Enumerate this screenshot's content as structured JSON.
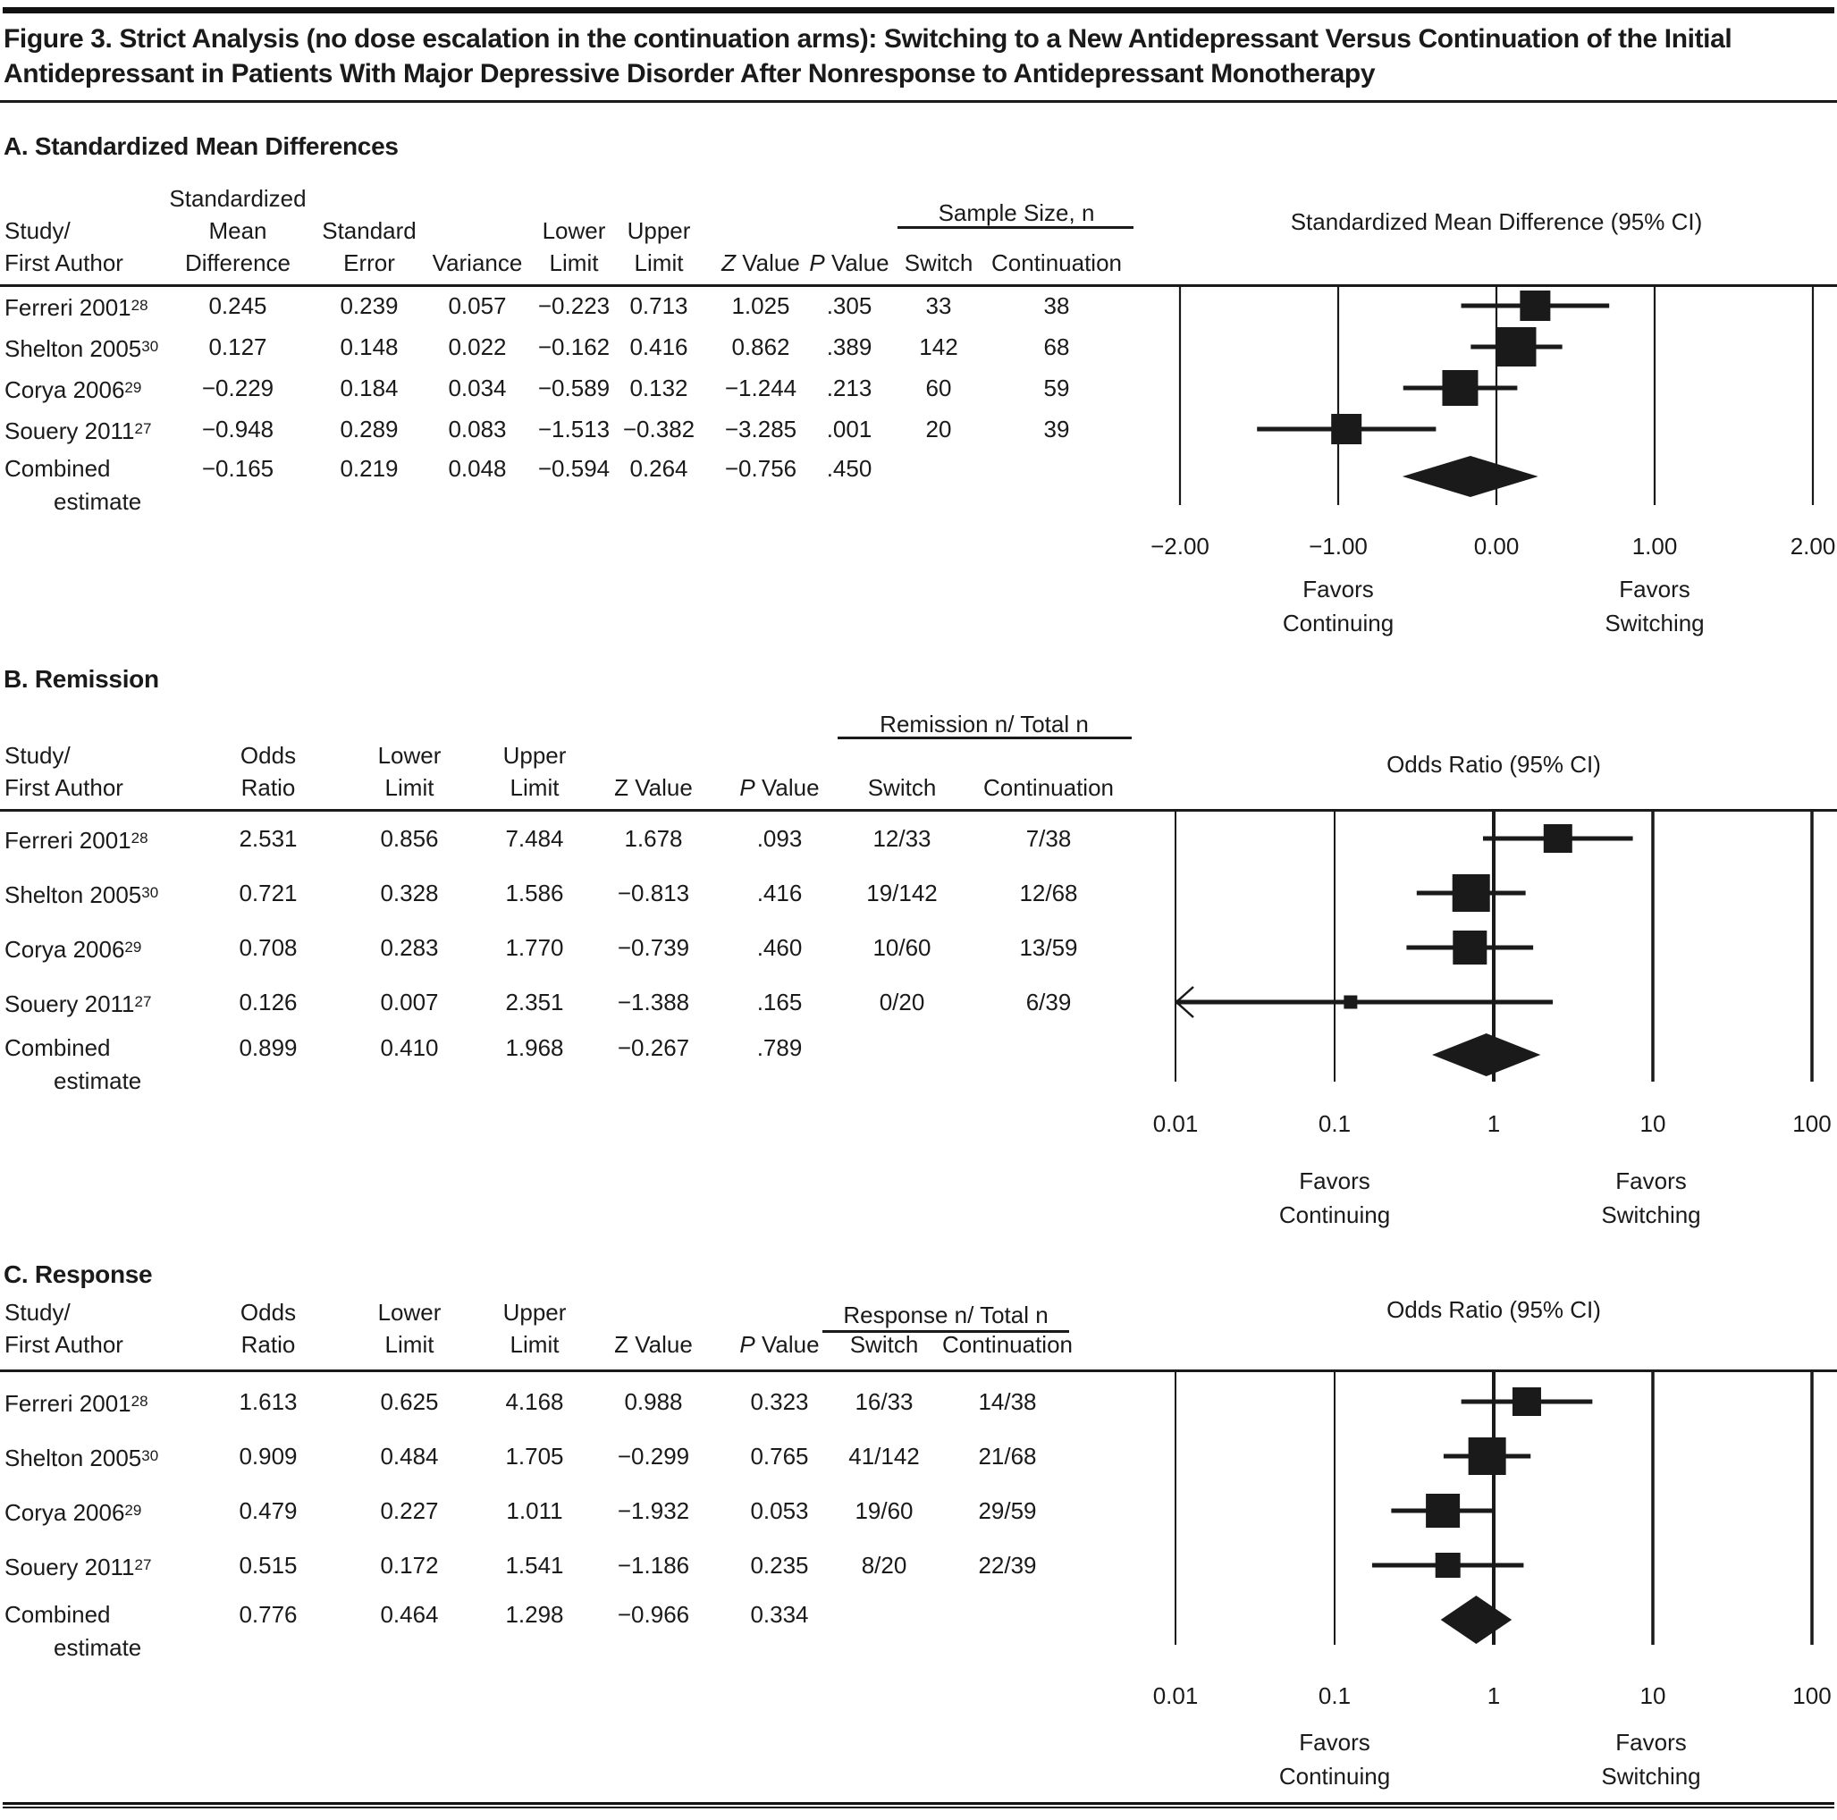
{
  "figure_title": "Figure 3. Strict Analysis (no dose escalation in the continuation arms): Switching to a New Antidepressant Versus Continuation of the Initial Antidepressant in Patients With Major Depressive Disorder After Nonresponse to Antidepressant Monotherapy",
  "chart_data": [
    {
      "type": "forest",
      "panel": "A",
      "title": "A. Standardized Mean Differences",
      "plot_title": "Standardized Mean Difference (95% CI)",
      "x_scale": "linear",
      "x_min": -2,
      "x_max": 2,
      "x_ticks": [
        -2,
        -1,
        0,
        1,
        2
      ],
      "x_tick_labels": [
        "−2.00",
        "−1.00",
        "0.00",
        "1.00",
        "2.00"
      ],
      "ref_line": 0,
      "col_headers": [
        [
          "Study/",
          "First Author"
        ],
        [
          "Standardized",
          "Mean",
          "Difference"
        ],
        [
          "Standard",
          "Error"
        ],
        [
          "Variance"
        ],
        [
          "Lower",
          "Limit"
        ],
        [
          "Upper",
          "Limit"
        ],
        [
          "Z Value"
        ],
        [
          "P Value"
        ]
      ],
      "group_header": {
        "label": "Sample Size, n",
        "sub": [
          "Switch",
          "Continuation"
        ]
      },
      "studies": [
        {
          "name": "Ferreri 2001",
          "sup": "28",
          "cells": [
            "0.245",
            "0.239",
            "0.057",
            "−0.223",
            "0.713",
            "1.025",
            ".305"
          ],
          "switch": "33",
          "continuation": "38",
          "est": 0.245,
          "lo": -0.223,
          "hi": 0.713
        },
        {
          "name": "Shelton 2005",
          "sup": "30",
          "cells": [
            "0.127",
            "0.148",
            "0.022",
            "−0.162",
            "0.416",
            "0.862",
            ".389"
          ],
          "switch": "142",
          "continuation": "68",
          "est": 0.127,
          "lo": -0.162,
          "hi": 0.416
        },
        {
          "name": "Corya 2006",
          "sup": "29",
          "cells": [
            "−0.229",
            "0.184",
            "0.034",
            "−0.589",
            "0.132",
            "−1.244",
            ".213"
          ],
          "switch": "60",
          "continuation": "59",
          "est": -0.229,
          "lo": -0.589,
          "hi": 0.132
        },
        {
          "name": "Souery 2011",
          "sup": "27",
          "cells": [
            "−0.948",
            "0.289",
            "0.083",
            "−1.513",
            "−0.382",
            "−3.285",
            ".001"
          ],
          "switch": "20",
          "continuation": "39",
          "est": -0.948,
          "lo": -1.513,
          "hi": -0.382
        }
      ],
      "combined": {
        "name": "Combined",
        "name2": "estimate",
        "cells": [
          "−0.165",
          "0.219",
          "0.048",
          "−0.594",
          "0.264",
          "−0.756",
          ".450"
        ],
        "switch": "",
        "continuation": "",
        "est": -0.165,
        "lo": -0.594,
        "hi": 0.264
      },
      "favors_left": [
        "Favors",
        "Continuing"
      ],
      "favors_right": [
        "Favors",
        "Switching"
      ]
    },
    {
      "type": "forest",
      "panel": "B",
      "title": "B. Remission",
      "plot_title": "Odds Ratio (95% CI)",
      "x_scale": "log",
      "x_min": 0.01,
      "x_max": 100,
      "x_ticks": [
        0.01,
        0.1,
        1,
        10,
        100
      ],
      "x_tick_labels": [
        "0.01",
        "0.1",
        "1",
        "10",
        "100"
      ],
      "ref_line": 1,
      "col_headers": [
        [
          "Study/",
          "First Author"
        ],
        [
          "Odds",
          "Ratio"
        ],
        [
          "Lower",
          "Limit"
        ],
        [
          "Upper",
          "Limit"
        ],
        [
          "Z Value"
        ],
        [
          "P Value"
        ]
      ],
      "group_header": {
        "label": "Remission n/ Total n",
        "sub": [
          "Switch",
          "Continuation"
        ]
      },
      "studies": [
        {
          "name": "Ferreri 2001",
          "sup": "28",
          "cells": [
            "2.531",
            "0.856",
            "7.484",
            "1.678",
            ".093"
          ],
          "switch": "12/33",
          "continuation": "7/38",
          "est": 2.531,
          "lo": 0.856,
          "hi": 7.484
        },
        {
          "name": "Shelton 2005",
          "sup": "30",
          "cells": [
            "0.721",
            "0.328",
            "1.586",
            "−0.813",
            ".416"
          ],
          "switch": "19/142",
          "continuation": "12/68",
          "est": 0.721,
          "lo": 0.328,
          "hi": 1.586
        },
        {
          "name": "Corya 2006",
          "sup": "29",
          "cells": [
            "0.708",
            "0.283",
            "1.770",
            "−0.739",
            ".460"
          ],
          "switch": "10/60",
          "continuation": "13/59",
          "est": 0.708,
          "lo": 0.283,
          "hi": 1.77
        },
        {
          "name": "Souery 2011",
          "sup": "27",
          "cells": [
            "0.126",
            "0.007",
            "2.351",
            "−1.388",
            ".165"
          ],
          "switch": "0/20",
          "continuation": "6/39",
          "est": 0.126,
          "lo": 0.007,
          "hi": 2.351
        }
      ],
      "combined": {
        "name": "Combined",
        "name2": "estimate",
        "cells": [
          "0.899",
          "0.410",
          "1.968",
          "−0.267",
          ".789"
        ],
        "switch": "",
        "continuation": "",
        "est": 0.899,
        "lo": 0.41,
        "hi": 1.968
      },
      "favors_left": [
        "Favors",
        "Continuing"
      ],
      "favors_right": [
        "Favors",
        "Switching"
      ]
    },
    {
      "type": "forest",
      "panel": "C",
      "title": "C. Response",
      "plot_title": "Odds Ratio (95% CI)",
      "x_scale": "log",
      "x_min": 0.01,
      "x_max": 100,
      "x_ticks": [
        0.01,
        0.1,
        1,
        10,
        100
      ],
      "x_tick_labels": [
        "0.01",
        "0.1",
        "1",
        "10",
        "100"
      ],
      "ref_line": 1,
      "col_headers": [
        [
          "Study/",
          "First Author"
        ],
        [
          "Odds",
          "Ratio"
        ],
        [
          "Lower",
          "Limit"
        ],
        [
          "Upper",
          "Limit"
        ],
        [
          "Z Value"
        ],
        [
          "P Value"
        ]
      ],
      "group_header": {
        "label": "Response n/ Total n",
        "sub": [
          "Switch",
          "Continuation"
        ]
      },
      "studies": [
        {
          "name": "Ferreri 2001",
          "sup": "28",
          "cells": [
            "1.613",
            "0.625",
            "4.168",
            "0.988",
            "0.323"
          ],
          "switch": "16/33",
          "continuation": "14/38",
          "est": 1.613,
          "lo": 0.625,
          "hi": 4.168
        },
        {
          "name": "Shelton 2005",
          "sup": "30",
          "cells": [
            "0.909",
            "0.484",
            "1.705",
            "−0.299",
            "0.765"
          ],
          "switch": "41/142",
          "continuation": "21/68",
          "est": 0.909,
          "lo": 0.484,
          "hi": 1.705
        },
        {
          "name": "Corya 2006",
          "sup": "29",
          "cells": [
            "0.479",
            "0.227",
            "1.011",
            "−1.932",
            "0.053"
          ],
          "switch": "19/60",
          "continuation": "29/59",
          "est": 0.479,
          "lo": 0.227,
          "hi": 1.011
        },
        {
          "name": "Souery 2011",
          "sup": "27",
          "cells": [
            "0.515",
            "0.172",
            "1.541",
            "−1.186",
            "0.235"
          ],
          "switch": "8/20",
          "continuation": "22/39",
          "est": 0.515,
          "lo": 0.172,
          "hi": 1.541
        }
      ],
      "combined": {
        "name": "Combined",
        "name2": "estimate",
        "cells": [
          "0.776",
          "0.464",
          "1.298",
          "−0.966",
          "0.334"
        ],
        "switch": "",
        "continuation": "",
        "est": 0.776,
        "lo": 0.464,
        "hi": 1.298
      },
      "favors_left": [
        "Favors",
        "Continuing"
      ],
      "favors_right": [
        "Favors",
        "Switching"
      ]
    }
  ]
}
